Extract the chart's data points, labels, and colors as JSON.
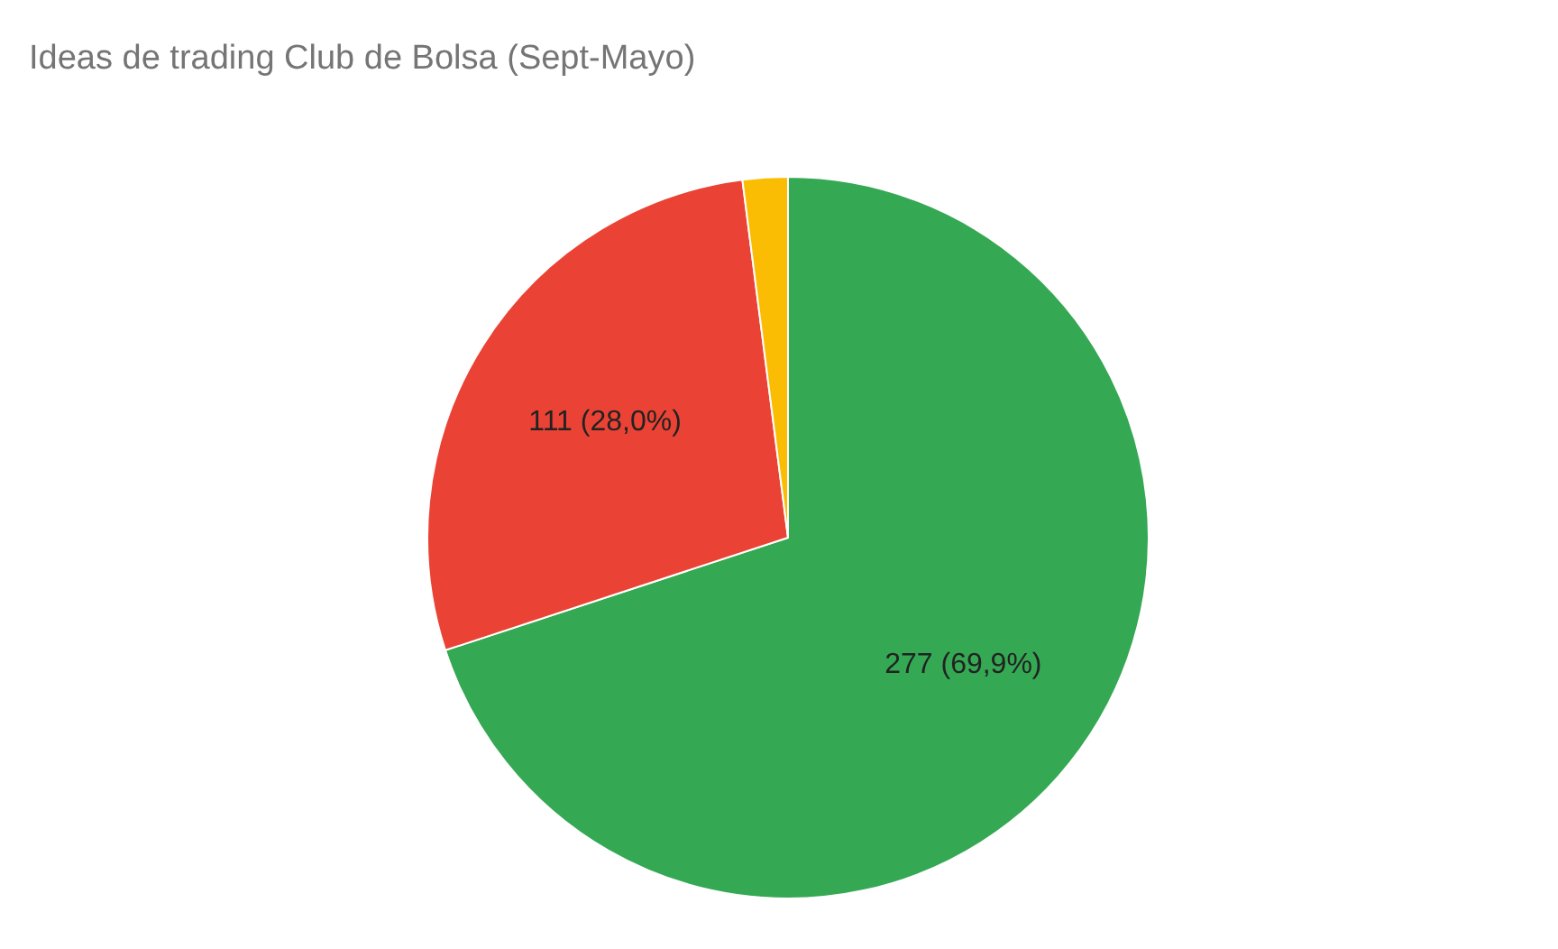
{
  "chart_data": {
    "type": "pie",
    "title": "Ideas de trading Club de Bolsa (Sept-Mayo)",
    "categories": [
      null,
      null,
      null
    ],
    "values": [
      277,
      111,
      8
    ],
    "colors": [
      "#34a853",
      "#ea4335",
      "#fbbc04"
    ],
    "value_labels": [
      "277 (69,9%)",
      "111 (28,0%)",
      null
    ],
    "legend": false
  }
}
